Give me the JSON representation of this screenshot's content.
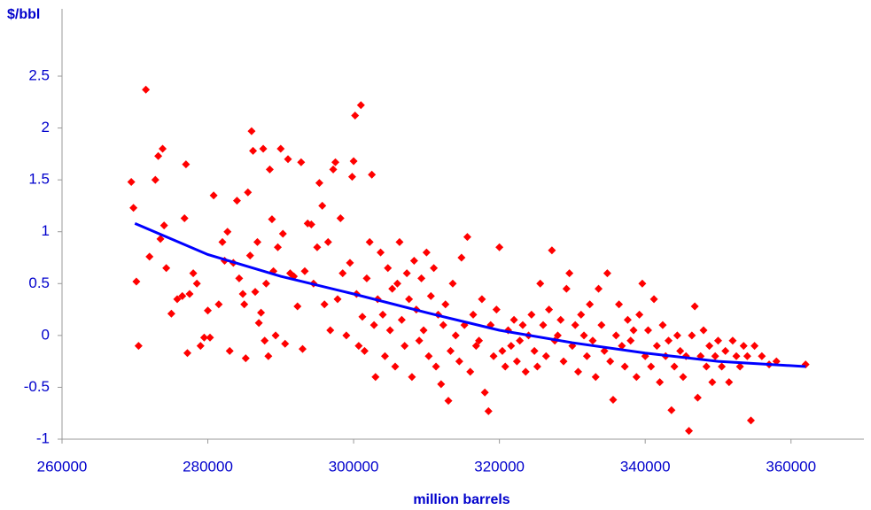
{
  "chart_data": {
    "type": "scatter",
    "y_label": "$/bbl",
    "x_label": "million barrels",
    "xlim": [
      260000,
      370000
    ],
    "xticks": [
      260000,
      280000,
      300000,
      320000,
      340000,
      360000
    ],
    "ylim": [
      -1,
      2.5
    ],
    "yticks": [
      -1,
      -0.5,
      0,
      0.5,
      1,
      1.5,
      2,
      2.5
    ],
    "series": [
      {
        "type": "scatter",
        "color": "#ff0000",
        "x": [
          269500,
          269800,
          270200,
          270500,
          271500,
          272000,
          272800,
          273200,
          273500,
          273800,
          274000,
          274300,
          275000,
          275800,
          276500,
          276800,
          277000,
          277200,
          277500,
          278000,
          278500,
          279000,
          279500,
          280000,
          280300,
          280800,
          281500,
          282000,
          282300,
          282700,
          283000,
          283500,
          284000,
          284300,
          284800,
          285000,
          285200,
          285500,
          285800,
          286000,
          286200,
          286500,
          286800,
          287000,
          287300,
          287600,
          287800,
          288000,
          288300,
          288500,
          288800,
          289000,
          289300,
          289600,
          290000,
          290300,
          290600,
          291000,
          291300,
          291800,
          292300,
          292800,
          293000,
          293300,
          293700,
          294200,
          294500,
          295000,
          295300,
          295700,
          296000,
          296500,
          296800,
          297200,
          297500,
          297800,
          298200,
          298500,
          299000,
          299500,
          299800,
          300000,
          300200,
          300400,
          300700,
          301000,
          301200,
          301500,
          301800,
          302200,
          302500,
          302800,
          303000,
          303300,
          303700,
          304000,
          304300,
          304700,
          305000,
          305300,
          305700,
          306000,
          306300,
          306600,
          307000,
          307300,
          307600,
          308000,
          308300,
          308600,
          309000,
          309300,
          309600,
          310000,
          310300,
          310600,
          311000,
          311300,
          311600,
          312000,
          312300,
          312600,
          313000,
          313300,
          313600,
          314000,
          314500,
          314800,
          315200,
          315600,
          316000,
          316400,
          316800,
          317200,
          317600,
          318000,
          318500,
          318800,
          319200,
          319600,
          320000,
          320400,
          320800,
          321200,
          321600,
          322000,
          322400,
          322800,
          323200,
          323600,
          324000,
          324400,
          324800,
          325200,
          325600,
          326000,
          326400,
          326800,
          327200,
          327600,
          328000,
          328400,
          328800,
          329200,
          329600,
          330000,
          330400,
          330800,
          331200,
          331600,
          332000,
          332400,
          332800,
          333200,
          333600,
          334000,
          334400,
          334800,
          335200,
          335600,
          336000,
          336400,
          336800,
          337200,
          337600,
          338000,
          338400,
          338800,
          339200,
          339600,
          340000,
          340400,
          340800,
          341200,
          341600,
          342000,
          342400,
          342800,
          343200,
          343600,
          344000,
          344400,
          344800,
          345200,
          345600,
          346000,
          346400,
          346800,
          347200,
          347600,
          348000,
          348400,
          348800,
          349200,
          349600,
          350000,
          350500,
          351000,
          351500,
          352000,
          352500,
          353000,
          353500,
          354000,
          354500,
          355000,
          356000,
          357000,
          358000,
          362000
        ],
        "values": [
          1.48,
          1.23,
          0.52,
          -0.1,
          2.37,
          0.76,
          1.5,
          1.73,
          0.93,
          1.8,
          1.06,
          0.65,
          0.21,
          0.35,
          0.38,
          1.13,
          1.65,
          -0.17,
          0.4,
          0.6,
          0.5,
          -0.1,
          -0.02,
          0.24,
          -0.02,
          1.35,
          0.3,
          0.9,
          0.72,
          1.0,
          -0.15,
          0.7,
          1.3,
          0.55,
          0.4,
          0.3,
          -0.22,
          1.38,
          0.77,
          1.97,
          1.78,
          0.42,
          0.9,
          0.12,
          0.22,
          1.8,
          -0.05,
          0.5,
          -0.2,
          1.6,
          1.12,
          0.62,
          0.0,
          0.85,
          1.8,
          0.98,
          -0.08,
          1.7,
          0.6,
          0.57,
          0.28,
          1.67,
          -0.13,
          0.62,
          1.08,
          1.07,
          0.5,
          0.85,
          1.47,
          1.25,
          0.3,
          0.9,
          0.05,
          1.6,
          1.67,
          0.35,
          1.13,
          0.6,
          0.0,
          0.7,
          1.53,
          1.68,
          2.12,
          0.4,
          -0.1,
          2.22,
          0.18,
          -0.15,
          0.55,
          0.9,
          1.55,
          0.1,
          -0.4,
          0.35,
          0.8,
          0.2,
          -0.2,
          0.65,
          0.05,
          0.45,
          -0.3,
          0.5,
          0.9,
          0.15,
          -0.1,
          0.6,
          0.35,
          -0.4,
          0.72,
          0.25,
          -0.05,
          0.55,
          0.05,
          0.8,
          -0.2,
          0.38,
          0.65,
          -0.3,
          0.2,
          -0.47,
          0.1,
          0.3,
          -0.63,
          -0.15,
          0.5,
          0.0,
          -0.25,
          0.75,
          0.1,
          0.95,
          -0.35,
          0.2,
          -0.1,
          -0.05,
          0.35,
          -0.55,
          -0.73,
          0.1,
          -0.2,
          0.25,
          0.85,
          -0.15,
          -0.3,
          0.05,
          -0.1,
          0.15,
          -0.25,
          -0.05,
          0.1,
          -0.35,
          0.0,
          0.2,
          -0.15,
          -0.3,
          0.5,
          0.1,
          -0.2,
          0.25,
          0.82,
          -0.05,
          0.0,
          0.15,
          -0.25,
          0.45,
          0.6,
          -0.1,
          0.1,
          -0.35,
          0.2,
          0.0,
          -0.2,
          0.3,
          -0.05,
          -0.4,
          0.45,
          0.1,
          -0.15,
          0.6,
          -0.25,
          -0.62,
          0.0,
          0.3,
          -0.1,
          -0.3,
          0.15,
          -0.05,
          0.05,
          -0.4,
          0.2,
          0.5,
          -0.2,
          0.05,
          -0.3,
          0.35,
          -0.1,
          -0.45,
          0.1,
          -0.2,
          -0.05,
          -0.72,
          -0.3,
          0.0,
          -0.15,
          -0.4,
          -0.2,
          -0.92,
          0.0,
          0.28,
          -0.6,
          -0.2,
          0.05,
          -0.3,
          -0.1,
          -0.45,
          -0.2,
          -0.05,
          -0.3,
          -0.15,
          -0.45,
          -0.05,
          -0.2,
          -0.3,
          -0.1,
          -0.2,
          -0.82,
          -0.1,
          -0.2,
          -0.28,
          -0.25,
          -0.28
        ]
      },
      {
        "type": "line",
        "color": "#0000ff",
        "x": [
          270000,
          280000,
          290000,
          300000,
          310000,
          320000,
          330000,
          340000,
          350000,
          362000
        ],
        "values": [
          1.08,
          0.78,
          0.57,
          0.4,
          0.22,
          0.05,
          -0.07,
          -0.17,
          -0.25,
          -0.3
        ]
      }
    ]
  }
}
